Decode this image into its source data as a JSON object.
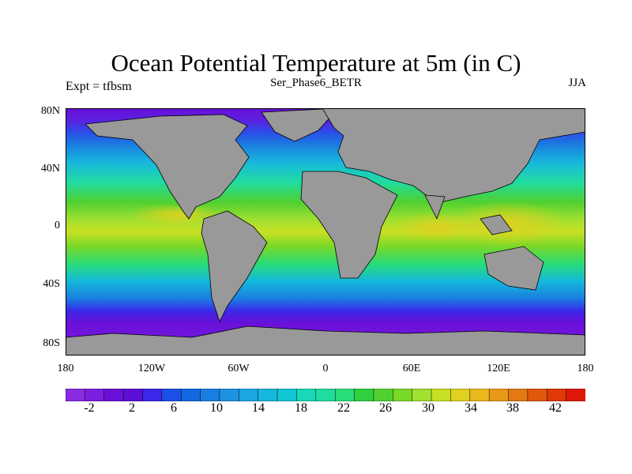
{
  "figure": {
    "title": "Ocean Potential Temperature at 5m (in C)",
    "left_subtitle": "Expt = tfbsm",
    "center_subtitle": "Ser_Phase6_BETR",
    "right_subtitle": "JJA"
  },
  "axes": {
    "lat_labels": [
      "80N",
      "40N",
      "0",
      "40S",
      "80S"
    ],
    "lon_labels": [
      "180",
      "120W",
      "60W",
      "0",
      "60E",
      "120E",
      "180"
    ]
  },
  "colorbar": {
    "labels": [
      "-2",
      "2",
      "6",
      "10",
      "14",
      "18",
      "22",
      "26",
      "30",
      "34",
      "38",
      "42"
    ],
    "colors": [
      "#8a2be2",
      "#7b1fe0",
      "#6a10d8",
      "#5a0fd4",
      "#3a28e8",
      "#1a50e8",
      "#1468e0",
      "#1a7ee0",
      "#1d92e2",
      "#1aa6e2",
      "#14b8dc",
      "#10c8d4",
      "#18d8b8",
      "#20dca0",
      "#28dc78",
      "#30d040",
      "#50d030",
      "#78d828",
      "#a0e030",
      "#c8e024",
      "#e0d020",
      "#e8b81c",
      "#e89818",
      "#e47812",
      "#e0580c",
      "#e03808",
      "#e01808"
    ]
  },
  "map": {
    "land_color": "#999999",
    "ocean_colors": {
      "polar": "#6a10d8",
      "subpolar": "#2a50e8",
      "midlat": "#1aa6e2",
      "subtrop": "#28dc78",
      "tropics": "#a0e030",
      "warmpool": "#e0d020"
    }
  }
}
